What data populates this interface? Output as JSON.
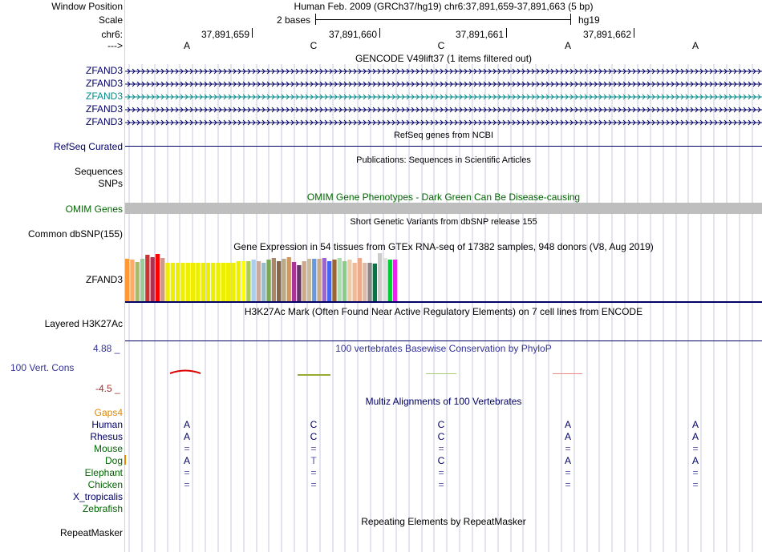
{
  "header": {
    "window_position_label": "Window Position",
    "window_position_value": "Human Feb. 2009 (GRCh37/hg19)   chr6:37,891,659-37,891,663 (5 bp)",
    "scale_label": "Scale",
    "scale_text": "2 bases",
    "scale_db": "hg19",
    "chrom_label": "chr6:",
    "coords": [
      "37,891,659",
      "37,891,660",
      "37,891,661",
      "37,891,662"
    ],
    "strand_label": "--->",
    "bases": [
      "A",
      "C",
      "C",
      "A",
      "A"
    ]
  },
  "gencode": {
    "title": "GENCODE V49lift37 (1 items filtered out)",
    "rows": [
      "ZFAND3",
      "ZFAND3",
      "ZFAND3",
      "ZFAND3",
      "ZFAND3"
    ],
    "highlight_row": 2
  },
  "refseq": {
    "title": "RefSeq genes from NCBI",
    "label": "RefSeq Curated"
  },
  "publications": {
    "title": "Publications: Sequences in Scientific Articles",
    "label1": "Sequences",
    "label2": "SNPs"
  },
  "omim": {
    "title": "OMIM Gene Phenotypes - Dark Green Can Be Disease-causing",
    "label": "OMIM Genes"
  },
  "dbsnp": {
    "title": "Short Genetic Variants from dbSNP release 155",
    "label": "Common dbSNP(155)"
  },
  "gtex": {
    "title": "Gene Expression in 54 tissues from GTEx RNA-seq of 17382 samples, 948 donors (V8, Aug 2019)",
    "label": "ZFAND3",
    "levels": [
      0.88,
      0.86,
      0.82,
      0.88,
      0.96,
      0.92,
      0.98,
      0.9,
      0.8,
      0.8,
      0.8,
      0.8,
      0.8,
      0.8,
      0.8,
      0.8,
      0.8,
      0.8,
      0.8,
      0.8,
      0.8,
      0.8,
      0.84,
      0.84,
      0.84,
      0.86,
      0.84,
      0.8,
      0.86,
      0.9,
      0.84,
      0.88,
      0.92,
      0.82,
      0.75,
      0.84,
      0.88,
      0.88,
      0.88,
      0.9,
      0.84,
      0.86,
      0.9,
      0.84,
      0.86,
      0.8,
      0.9,
      0.8,
      0.8,
      0.78,
      1.0,
      0.9,
      0.86,
      0.86
    ],
    "colors": [
      "#FF9933",
      "#FFAA66",
      "#AABB66",
      "#99CC99",
      "#CC3333",
      "#AA3355",
      "#FF0000",
      "#CC9988",
      "#EEEE00",
      "#EEEE00",
      "#EEEE00",
      "#EEEE00",
      "#EEEE00",
      "#EEEE00",
      "#EEEE00",
      "#EEEE00",
      "#EEEE00",
      "#EEEE00",
      "#EEEE00",
      "#EEEE00",
      "#EEEE00",
      "#EEEE00",
      "#EEEE00",
      "#FFFF00",
      "#AACC55",
      "#AACCEE",
      "#CCAA99",
      "#99BBCC",
      "#77AA55",
      "#AA8866",
      "#886644",
      "#BBAA88",
      "#CC9966",
      "#AA3399",
      "#663366",
      "#CCAA88",
      "#CCBB99",
      "#6699DD",
      "#CCAA88",
      "#9966CC",
      "#4466EE",
      "#996633",
      "#AADDAA",
      "#88CC88",
      "#EECCAA",
      "#EEBB99",
      "#EEAA88",
      "#DDBBAA",
      "#888888",
      "#007744",
      "#CCCCCC",
      "#DDDDDD",
      "#00CC33",
      "#EE22EE"
    ]
  },
  "h3k27ac": {
    "title": "H3K27Ac Mark (Often Found Near Active Regulatory Elements) on 7 cell lines from ENCODE",
    "label": "Layered H3K27Ac"
  },
  "phylop": {
    "title": "100 vertebrates Basewise Conservation by PhyloP",
    "label": "100 Vert. Cons",
    "max": "4.88 _",
    "min": "-4.5 _"
  },
  "multiz": {
    "title": "Multiz Alignments of 100 Vertebrates",
    "gaps_label": "Gaps4",
    "species": [
      {
        "name": "Human",
        "seq": [
          "A",
          "C",
          "C",
          "A",
          "A"
        ],
        "color": "#000066"
      },
      {
        "name": "Rhesus",
        "seq": [
          "A",
          "C",
          "C",
          "A",
          "A"
        ],
        "color": "#000066"
      },
      {
        "name": "Mouse",
        "seq": [
          "=",
          "=",
          "=",
          "=",
          "="
        ],
        "color": "#006600"
      },
      {
        "name": "Dog",
        "seq": [
          "A",
          "T",
          "C",
          "A",
          "A"
        ],
        "color": "#006600"
      },
      {
        "name": "Elephant",
        "seq": [
          "=",
          "=",
          "=",
          "=",
          "="
        ],
        "color": "#006600"
      },
      {
        "name": "Chicken",
        "seq": [
          "=",
          "=",
          "=",
          "=",
          "="
        ],
        "color": "#006600"
      },
      {
        "name": "X_tropicalis",
        "seq": [
          "",
          "",
          "",
          "",
          ""
        ],
        "color": "#000066"
      },
      {
        "name": "Zebrafish",
        "seq": [
          "",
          "",
          "",
          "",
          ""
        ],
        "color": "#006600"
      }
    ]
  },
  "repeatmasker": {
    "title": "Repeating Elements by RepeatMasker",
    "label": "RepeatMasker"
  },
  "colors": {
    "navy": "#000066",
    "green": "#006600",
    "teal": "#008B8B",
    "orange": "#DD8800",
    "grid": "#C8C8DC",
    "omim_bar": "#BEBEBE"
  }
}
